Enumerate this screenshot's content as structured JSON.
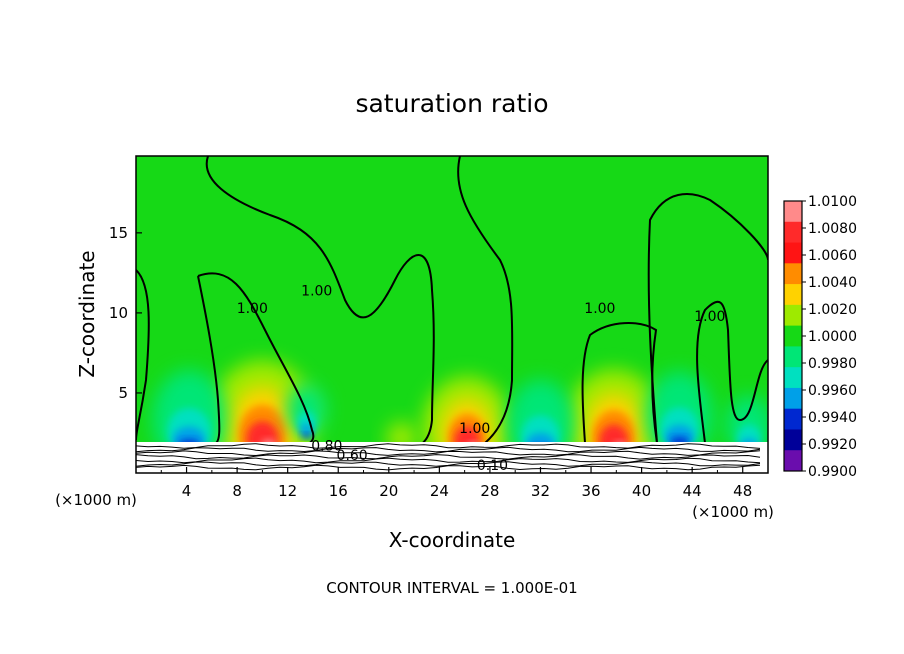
{
  "chart_data": {
    "type": "heatmap",
    "title": "saturation ratio",
    "xlabel": "X-coordinate",
    "ylabel": "Z-coordinate",
    "x_unit": "(×1000 m)",
    "z_unit": "(×1000 m)",
    "xlim": [
      0,
      50
    ],
    "ylim": [
      0,
      19.8
    ],
    "x_ticks": [
      4,
      8,
      12,
      16,
      20,
      24,
      28,
      32,
      36,
      40,
      44,
      48
    ],
    "y_ticks": [
      5,
      10,
      15
    ],
    "footer": "CONTOUR INTERVAL = 1.000E-01",
    "colorbar": {
      "levels": [
        "1.0100",
        "1.0080",
        "1.0060",
        "1.0040",
        "1.0020",
        "1.0000",
        "0.9980",
        "0.9960",
        "0.9940",
        "0.9920",
        "0.9900"
      ],
      "colors": [
        "#ff8a8a",
        "#ff2a2a",
        "#ff1414",
        "#ff8c00",
        "#ffd200",
        "#9eea00",
        "#16d916",
        "#00e676",
        "#00e0c0",
        "#00a0e8",
        "#0028d0",
        "#000099",
        "#6a0dad"
      ]
    },
    "contour_labels": [
      {
        "text": "1.00",
        "x": 14.3,
        "z": 11.1
      },
      {
        "text": "1.00",
        "x": 9.2,
        "z": 10.0
      },
      {
        "text": "1.00",
        "x": 36.7,
        "z": 10.0
      },
      {
        "text": "1.00",
        "x": 45.4,
        "z": 9.5
      },
      {
        "text": "1.00",
        "x": 26.8,
        "z": 2.5
      },
      {
        "text": "0.80",
        "x": 15.1,
        "z": 1.4
      },
      {
        "text": "0.60",
        "x": 17.1,
        "z": 0.8
      },
      {
        "text": "0.10",
        "x": 28.2,
        "z": 0.2
      }
    ],
    "moist_cells": [
      {
        "x": 10.0,
        "z": 2.0,
        "strength": 1.0
      },
      {
        "x": 26.2,
        "z": 1.9,
        "strength": 0.8
      },
      {
        "x": 37.8,
        "z": 1.9,
        "strength": 0.9
      },
      {
        "x": 21.0,
        "z": 2.0,
        "strength": 0.15
      }
    ],
    "dry_cells": [
      {
        "x": 4.2,
        "z": 2.6,
        "strength": 0.9
      },
      {
        "x": 13.5,
        "z": 3.2,
        "strength": 0.4
      },
      {
        "x": 32.0,
        "z": 2.3,
        "strength": 0.8
      },
      {
        "x": 43.0,
        "z": 2.8,
        "strength": 0.8
      },
      {
        "x": 48.5,
        "z": 2.2,
        "strength": 0.5
      }
    ]
  }
}
